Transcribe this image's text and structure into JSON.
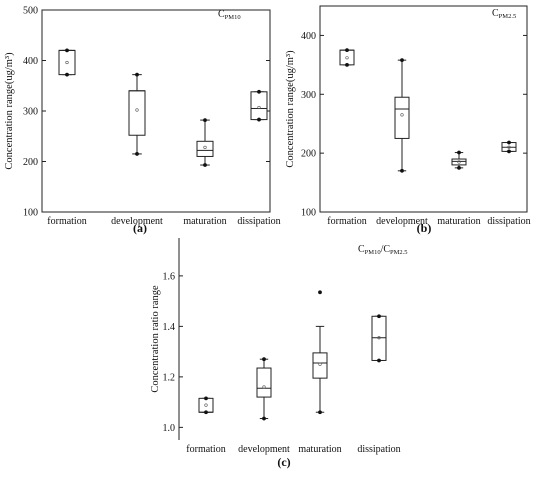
{
  "chart_data": [
    {
      "type": "box",
      "panel_label": "(a)",
      "title": "C",
      "title_sub": "PM10",
      "ylabel": "Concentration range(ug/m³)",
      "ylim": [
        100,
        500
      ],
      "yticks": [
        "100",
        "200",
        "300",
        "400",
        "500"
      ],
      "categories": [
        "formation",
        "development",
        "maturation",
        "dissipation"
      ],
      "boxes": [
        {
          "min": 372,
          "q1": 372,
          "median": 420,
          "q3": 420,
          "max": 420,
          "mean": 396,
          "outliers": [
            372,
            420
          ]
        },
        {
          "min": 215,
          "q1": 252,
          "median": 340,
          "q3": 340,
          "max": 372,
          "mean": 302,
          "outliers": [
            215,
            372
          ]
        },
        {
          "min": 193,
          "q1": 210,
          "median": 222,
          "q3": 240,
          "max": 282,
          "mean": 228,
          "outliers": [
            193,
            282
          ]
        },
        {
          "min": 283,
          "q1": 283,
          "median": 305,
          "q3": 338,
          "max": 338,
          "mean": 307,
          "outliers": [
            283,
            338
          ]
        }
      ]
    },
    {
      "type": "box",
      "panel_label": "(b)",
      "title": "C",
      "title_sub": "PM2.5",
      "ylabel": "Concentration range(ug/m³)",
      "ylim": [
        100,
        450
      ],
      "yticks": [
        "100",
        "200",
        "300",
        "400"
      ],
      "categories": [
        "formation",
        "development",
        "maturation",
        "dissipation"
      ],
      "boxes": [
        {
          "min": 350,
          "q1": 350,
          "median": 375,
          "q3": 375,
          "max": 375,
          "mean": 362,
          "outliers": [
            350,
            375
          ]
        },
        {
          "min": 170,
          "q1": 225,
          "median": 275,
          "q3": 295,
          "max": 358,
          "mean": 265,
          "outliers": [
            170,
            358
          ]
        },
        {
          "min": 175,
          "q1": 180,
          "median": 186,
          "q3": 190,
          "max": 201,
          "mean": 185,
          "outliers": [
            175,
            201
          ]
        },
        {
          "min": 203,
          "q1": 203,
          "median": 210,
          "q3": 218,
          "max": 218,
          "mean": 210,
          "outliers": [
            203,
            218
          ]
        }
      ]
    },
    {
      "type": "box",
      "panel_label": "(c)",
      "title": "C",
      "title_sub": "PM10",
      "title_mid": "/C",
      "title_sub2": "PM2.5",
      "ylabel": "Concentration ratio range",
      "ylim": [
        0.95,
        1.75
      ],
      "yticks": [
        "1.0",
        "1.2",
        "1.4",
        "1.6"
      ],
      "categories": [
        "formation",
        "development",
        "maturation",
        "dissipation"
      ],
      "boxes": [
        {
          "min": 1.06,
          "q1": 1.06,
          "median": 1.06,
          "q3": 1.115,
          "max": 1.115,
          "mean": 1.088,
          "outliers": [
            1.06,
            1.115
          ]
        },
        {
          "min": 1.035,
          "q1": 1.12,
          "median": 1.155,
          "q3": 1.235,
          "max": 1.27,
          "mean": 1.16,
          "outliers": [
            1.035,
            1.27
          ]
        },
        {
          "min": 1.06,
          "q1": 1.195,
          "median": 1.255,
          "q3": 1.295,
          "max": 1.4,
          "mean": 1.25,
          "outliers": [
            1.06,
            1.535
          ]
        },
        {
          "min": 1.265,
          "q1": 1.265,
          "median": 1.355,
          "q3": 1.44,
          "max": 1.44,
          "mean": 1.355,
          "outliers": [
            1.265,
            1.44
          ]
        }
      ]
    }
  ]
}
